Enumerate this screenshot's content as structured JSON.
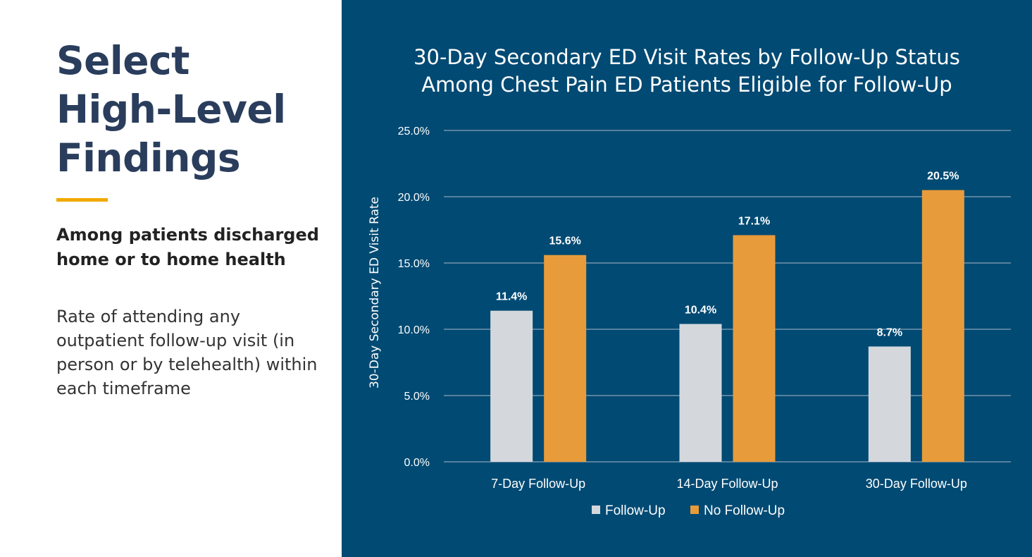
{
  "left": {
    "title": [
      "Select",
      "High-Level",
      "Findings"
    ],
    "subheading": "Among patients discharged home or to home health",
    "body": "Rate of attending any outpatient follow-up visit (in person or by telehealth) within each timeframe"
  },
  "colors": {
    "panel_bg": "#004a73",
    "accent": "#f2a900",
    "follow_up": "#d4d8dc",
    "no_follow_up": "#e89b3a",
    "grid": "#8aa2b8"
  },
  "chart_data": {
    "type": "bar",
    "title": "30-Day Secondary ED Visit Rates by Follow-Up Status Among Chest Pain ED Patients Eligible for Follow-Up",
    "title_lines": [
      "30-Day Secondary ED Visit Rates by Follow-Up Status",
      "Among Chest Pain ED Patients Eligible for Follow-Up"
    ],
    "ylabel": "30-Day Secondary ED Visit Rate",
    "xlabel": "",
    "categories": [
      "7-Day Follow-Up",
      "14-Day Follow-Up",
      "30-Day Follow-Up"
    ],
    "series": [
      {
        "name": "Follow-Up",
        "values": [
          11.4,
          10.4,
          8.7
        ],
        "labels": [
          "11.4%",
          "10.4%",
          "8.7%"
        ]
      },
      {
        "name": "No Follow-Up",
        "values": [
          15.6,
          17.1,
          20.5
        ],
        "labels": [
          "15.6%",
          "17.1%",
          "20.5%"
        ]
      }
    ],
    "ylim": [
      0,
      25
    ],
    "yticks": [
      "0.0%",
      "5.0%",
      "10.0%",
      "15.0%",
      "20.0%",
      "25.0%"
    ],
    "grid": true,
    "legend_position": "bottom"
  }
}
